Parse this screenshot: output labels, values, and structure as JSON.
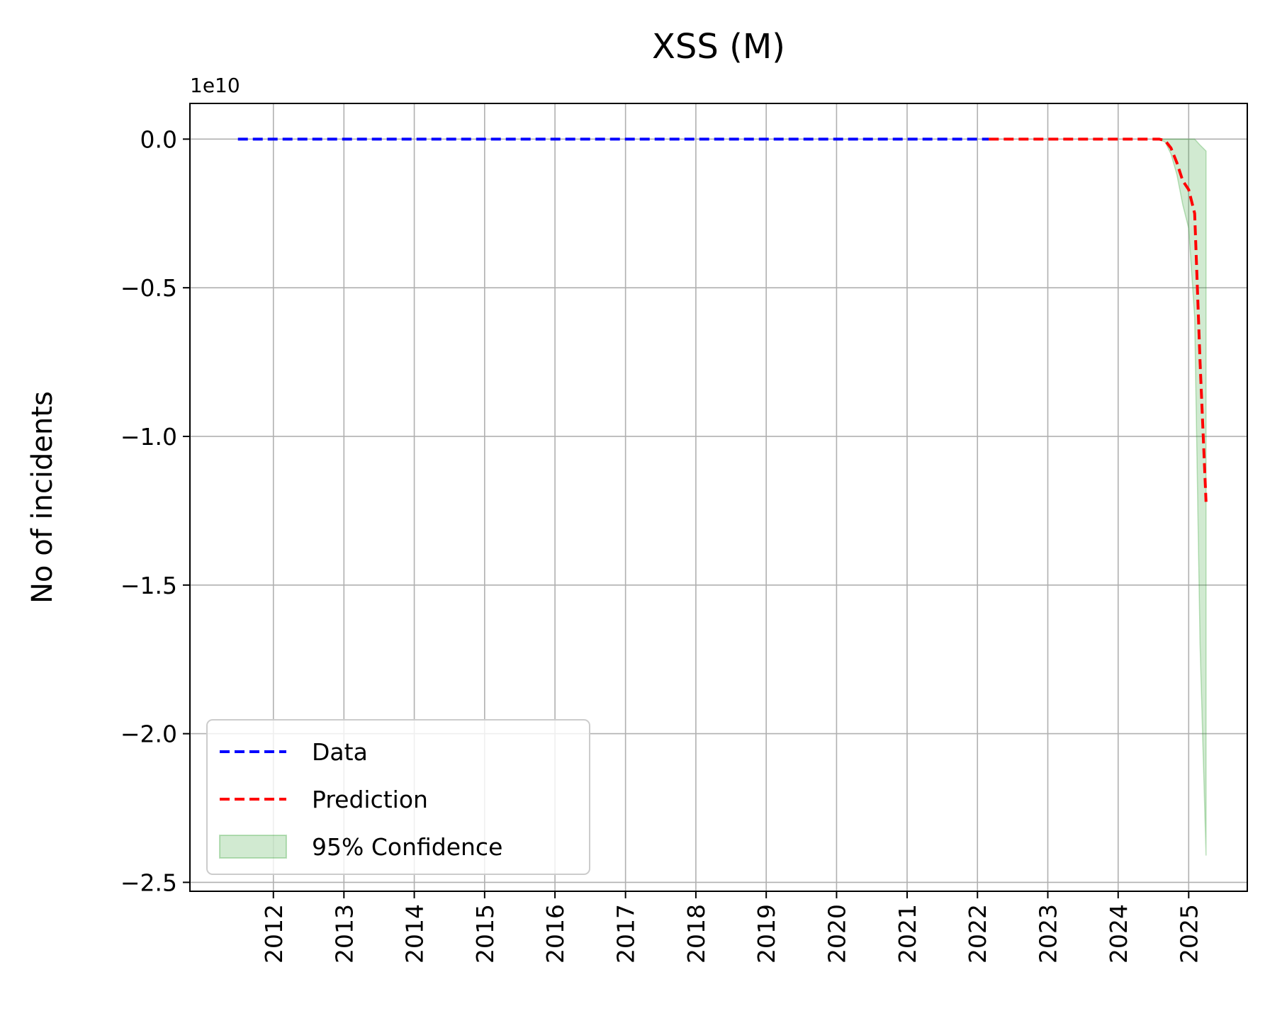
{
  "chart_data": {
    "type": "line",
    "title": "XSS (M)",
    "xlabel": "",
    "ylabel": "No of incidents",
    "y_offset_label": "1e10",
    "y_scale": 10000000000.0,
    "xlim": [
      "2010-10-25",
      "2025-11-01"
    ],
    "ylim": [
      -25300000000.0,
      1200000000.0
    ],
    "x_ticks": [
      "2012",
      "2013",
      "2014",
      "2015",
      "2016",
      "2017",
      "2018",
      "2019",
      "2020",
      "2021",
      "2022",
      "2023",
      "2024",
      "2025"
    ],
    "y_ticks": [
      0.0,
      -5000000000.0,
      -10000000000.0,
      -15000000000.0,
      -20000000000.0,
      -25000000000.0
    ],
    "y_tick_labels": [
      "0.0",
      "−0.5",
      "−1.0",
      "−1.5",
      "−2.0",
      "−2.5"
    ],
    "grid": true,
    "legend_position": "lower-left",
    "series": [
      {
        "name": "Data",
        "color": "#0000ff",
        "style": "dashed",
        "x": [
          "2011-07-01",
          "2013-01-01",
          "2015-01-01",
          "2017-01-01",
          "2019-01-01",
          "2021-01-01",
          "2022-03-01"
        ],
        "y": [
          0,
          0,
          0,
          0,
          0,
          0,
          0
        ]
      },
      {
        "name": "Prediction",
        "color": "#ff0000",
        "style": "dashed",
        "x": [
          "2022-03-01",
          "2023-01-01",
          "2024-01-01",
          "2024-08-01",
          "2024-09-01",
          "2024-10-01",
          "2024-11-01",
          "2024-12-01",
          "2025-01-01",
          "2025-02-01",
          "2025-03-01",
          "2025-04-01"
        ],
        "y": [
          0,
          0,
          0,
          0,
          -50000000.0,
          -300000000.0,
          -800000000.0,
          -1400000000.0,
          -1700000000.0,
          -2500000000.0,
          -7500000000.0,
          -12200000000.0
        ]
      },
      {
        "name": "95% Confidence",
        "type": "band",
        "color": "#2ca02c",
        "opacity": 0.22,
        "x": [
          "2024-08-01",
          "2024-09-01",
          "2024-10-01",
          "2024-11-01",
          "2024-12-01",
          "2025-01-01",
          "2025-02-01",
          "2025-03-01",
          "2025-04-01"
        ],
        "lower": [
          0,
          -100000000.0,
          -500000000.0,
          -1200000000.0,
          -2200000000.0,
          -3000000000.0,
          -6000000000.0,
          -17000000000.0,
          -24100000000.0
        ],
        "upper": [
          0,
          0,
          0,
          0,
          0,
          0,
          0,
          -200000000.0,
          -400000000.0
        ]
      }
    ],
    "legend": [
      "Data",
      "Prediction",
      "95% Confidence"
    ]
  }
}
